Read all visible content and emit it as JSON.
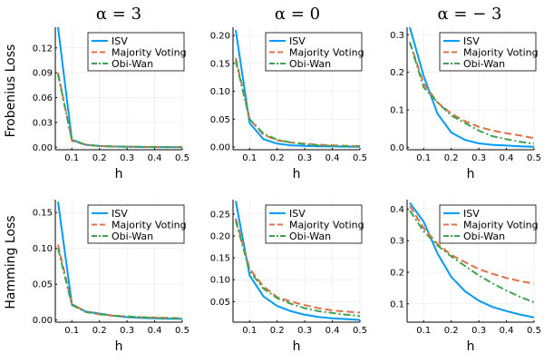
{
  "column_titles": [
    "α = 3",
    "α = 0",
    "α = − 3"
  ],
  "row_ylabels": [
    "Frobenius Loss",
    "Hamming Loss"
  ],
  "colors": {
    "ISV": "#009af9",
    "Majority Voting": "#e26f46",
    "Obi-Wan": "#3da44d"
  },
  "chart_data": [
    {
      "type": "line",
      "xlabel": "h",
      "ylabel": "Frobenius Loss",
      "title": "α = 3",
      "xlim": [
        0.04,
        0.5
      ],
      "ylim": [
        -0.003,
        0.145
      ],
      "xticks": [
        0.1,
        0.2,
        0.3,
        0.4,
        0.5
      ],
      "xtick_labels": [
        "0.1",
        "0.2",
        "0.3",
        "0.4",
        "0.5"
      ],
      "yticks": [
        0,
        0.03,
        0.06,
        0.09,
        0.12
      ],
      "ytick_labels": [
        "0.00",
        "0.03",
        "0.06",
        "0.09",
        "0.12"
      ],
      "grid": true,
      "legend": "top-right",
      "x": [
        0.05,
        0.1,
        0.15,
        0.2,
        0.25,
        0.3,
        0.35,
        0.4,
        0.45,
        0.5
      ],
      "series": [
        {
          "name": "ISV",
          "values": [
            0.145,
            0.009,
            0.003,
            0.0015,
            0.0008,
            0.0005,
            0.0003,
            0.0002,
            0.0001,
            0.0001
          ]
        },
        {
          "name": "Majority Voting",
          "values": [
            0.09,
            0.008,
            0.003,
            0.0015,
            0.001,
            0.0007,
            0.0005,
            0.0004,
            0.0003,
            0.0002
          ]
        },
        {
          "name": "Obi-Wan",
          "values": [
            0.088,
            0.009,
            0.003,
            0.0015,
            0.001,
            0.0007,
            0.0005,
            0.0004,
            0.0003,
            0.0002
          ]
        }
      ]
    },
    {
      "type": "line",
      "xlabel": "h",
      "ylabel": "",
      "title": "α = 0",
      "xlim": [
        0.04,
        0.5
      ],
      "ylim": [
        -0.005,
        0.215
      ],
      "xticks": [
        0.1,
        0.2,
        0.3,
        0.4,
        0.5
      ],
      "xtick_labels": [
        "0.1",
        "0.2",
        "0.3",
        "0.4",
        "0.5"
      ],
      "yticks": [
        0,
        0.05,
        0.1,
        0.15,
        0.2
      ],
      "ytick_labels": [
        "0.00",
        "0.05",
        "0.10",
        "0.15",
        "0.20"
      ],
      "grid": true,
      "legend": "top-right",
      "x": [
        0.05,
        0.1,
        0.15,
        0.2,
        0.25,
        0.3,
        0.35,
        0.4,
        0.45,
        0.5
      ],
      "series": [
        {
          "name": "ISV",
          "values": [
            0.21,
            0.043,
            0.014,
            0.006,
            0.003,
            0.002,
            0.0012,
            0.0008,
            0.0005,
            0.0003
          ]
        },
        {
          "name": "Majority Voting",
          "values": [
            0.16,
            0.05,
            0.022,
            0.012,
            0.008,
            0.006,
            0.004,
            0.003,
            0.002,
            0.0015
          ]
        },
        {
          "name": "Obi-Wan",
          "values": [
            0.155,
            0.05,
            0.024,
            0.013,
            0.008,
            0.005,
            0.003,
            0.002,
            0.0015,
            0.001
          ]
        }
      ]
    },
    {
      "type": "line",
      "xlabel": "h",
      "ylabel": "",
      "title": "α = − 3",
      "xlim": [
        0.04,
        0.5
      ],
      "ylim": [
        -0.006,
        0.32
      ],
      "xticks": [
        0.1,
        0.2,
        0.3,
        0.4,
        0.5
      ],
      "xtick_labels": [
        "0.1",
        "0.2",
        "0.3",
        "0.4",
        "0.5"
      ],
      "yticks": [
        0,
        0.1,
        0.2,
        0.3
      ],
      "ytick_labels": [
        "0.0",
        "0.1",
        "0.2",
        "0.3"
      ],
      "grid": true,
      "legend": "top-right",
      "x": [
        0.05,
        0.1,
        0.15,
        0.2,
        0.25,
        0.3,
        0.35,
        0.4,
        0.45,
        0.5
      ],
      "series": [
        {
          "name": "ISV",
          "values": [
            0.32,
            0.19,
            0.09,
            0.04,
            0.02,
            0.011,
            0.007,
            0.005,
            0.003,
            0.002
          ]
        },
        {
          "name": "Majority Voting",
          "values": [
            0.28,
            0.17,
            0.12,
            0.09,
            0.07,
            0.055,
            0.045,
            0.038,
            0.032,
            0.025
          ]
        },
        {
          "name": "Obi-Wan",
          "values": [
            0.28,
            0.16,
            0.12,
            0.085,
            0.065,
            0.045,
            0.03,
            0.022,
            0.015,
            0.01
          ]
        }
      ]
    },
    {
      "type": "line",
      "xlabel": "h",
      "ylabel": "Hamming Loss",
      "title": "",
      "xlim": [
        0.04,
        0.5
      ],
      "ylim": [
        -0.003,
        0.168
      ],
      "xticks": [
        0.1,
        0.2,
        0.3,
        0.4,
        0.5
      ],
      "xtick_labels": [
        "0.1",
        "0.2",
        "0.3",
        "0.4",
        "0.5"
      ],
      "yticks": [
        0,
        0.05,
        0.1,
        0.15
      ],
      "ytick_labels": [
        "0.00",
        "0.05",
        "0.10",
        "0.15"
      ],
      "grid": true,
      "legend": "top-right",
      "x": [
        0.05,
        0.1,
        0.15,
        0.2,
        0.25,
        0.3,
        0.35,
        0.4,
        0.45,
        0.5
      ],
      "series": [
        {
          "name": "ISV",
          "values": [
            0.165,
            0.022,
            0.012,
            0.009,
            0.006,
            0.004,
            0.003,
            0.0025,
            0.002,
            0.0015
          ]
        },
        {
          "name": "Majority Voting",
          "values": [
            0.105,
            0.022,
            0.012,
            0.008,
            0.006,
            0.005,
            0.004,
            0.0035,
            0.003,
            0.0025
          ]
        },
        {
          "name": "Obi-Wan",
          "values": [
            0.1,
            0.021,
            0.011,
            0.008,
            0.006,
            0.005,
            0.004,
            0.003,
            0.0025,
            0.002
          ]
        }
      ]
    },
    {
      "type": "line",
      "xlabel": "h",
      "ylabel": "",
      "title": "",
      "xlim": [
        0.04,
        0.5
      ],
      "ylim": [
        0.003,
        0.283
      ],
      "xticks": [
        0.1,
        0.2,
        0.3,
        0.4,
        0.5
      ],
      "xtick_labels": [
        "0.1",
        "0.2",
        "0.3",
        "0.4",
        "0.5"
      ],
      "yticks": [
        0.05,
        0.1,
        0.15,
        0.2,
        0.25
      ],
      "ytick_labels": [
        "0.05",
        "0.10",
        "0.15",
        "0.20",
        "0.25"
      ],
      "grid": true,
      "legend": "top-right",
      "x": [
        0.05,
        0.1,
        0.15,
        0.2,
        0.25,
        0.3,
        0.35,
        0.4,
        0.45,
        0.5
      ],
      "series": [
        {
          "name": "ISV",
          "values": [
            0.28,
            0.11,
            0.062,
            0.04,
            0.028,
            0.02,
            0.015,
            0.012,
            0.01,
            0.008
          ]
        },
        {
          "name": "Majority Voting",
          "values": [
            0.24,
            0.125,
            0.085,
            0.06,
            0.05,
            0.042,
            0.035,
            0.03,
            0.027,
            0.025
          ]
        },
        {
          "name": "Obi-Wan",
          "values": [
            0.235,
            0.12,
            0.08,
            0.058,
            0.045,
            0.035,
            0.028,
            0.024,
            0.02,
            0.017
          ]
        }
      ]
    },
    {
      "type": "line",
      "xlabel": "h",
      "ylabel": "",
      "title": "",
      "xlim": [
        0.04,
        0.5
      ],
      "ylim": [
        0.042,
        0.43
      ],
      "xticks": [
        0.1,
        0.2,
        0.3,
        0.4,
        0.5
      ],
      "xtick_labels": [
        "0.1",
        "0.2",
        "0.3",
        "0.4",
        "0.5"
      ],
      "yticks": [
        0.1,
        0.2,
        0.3,
        0.4
      ],
      "ytick_labels": [
        "0.1",
        "0.2",
        "0.3",
        "0.4"
      ],
      "grid": true,
      "legend": "top-right",
      "x": [
        0.05,
        0.1,
        0.15,
        0.2,
        0.25,
        0.3,
        0.35,
        0.4,
        0.45,
        0.5
      ],
      "series": [
        {
          "name": "ISV",
          "values": [
            0.42,
            0.36,
            0.26,
            0.185,
            0.14,
            0.11,
            0.09,
            0.077,
            0.066,
            0.057
          ]
        },
        {
          "name": "Majority Voting",
          "values": [
            0.41,
            0.34,
            0.29,
            0.255,
            0.232,
            0.21,
            0.195,
            0.182,
            0.172,
            0.164
          ]
        },
        {
          "name": "Obi-Wan",
          "values": [
            0.395,
            0.33,
            0.285,
            0.25,
            0.22,
            0.19,
            0.165,
            0.142,
            0.122,
            0.105
          ]
        }
      ]
    }
  ]
}
